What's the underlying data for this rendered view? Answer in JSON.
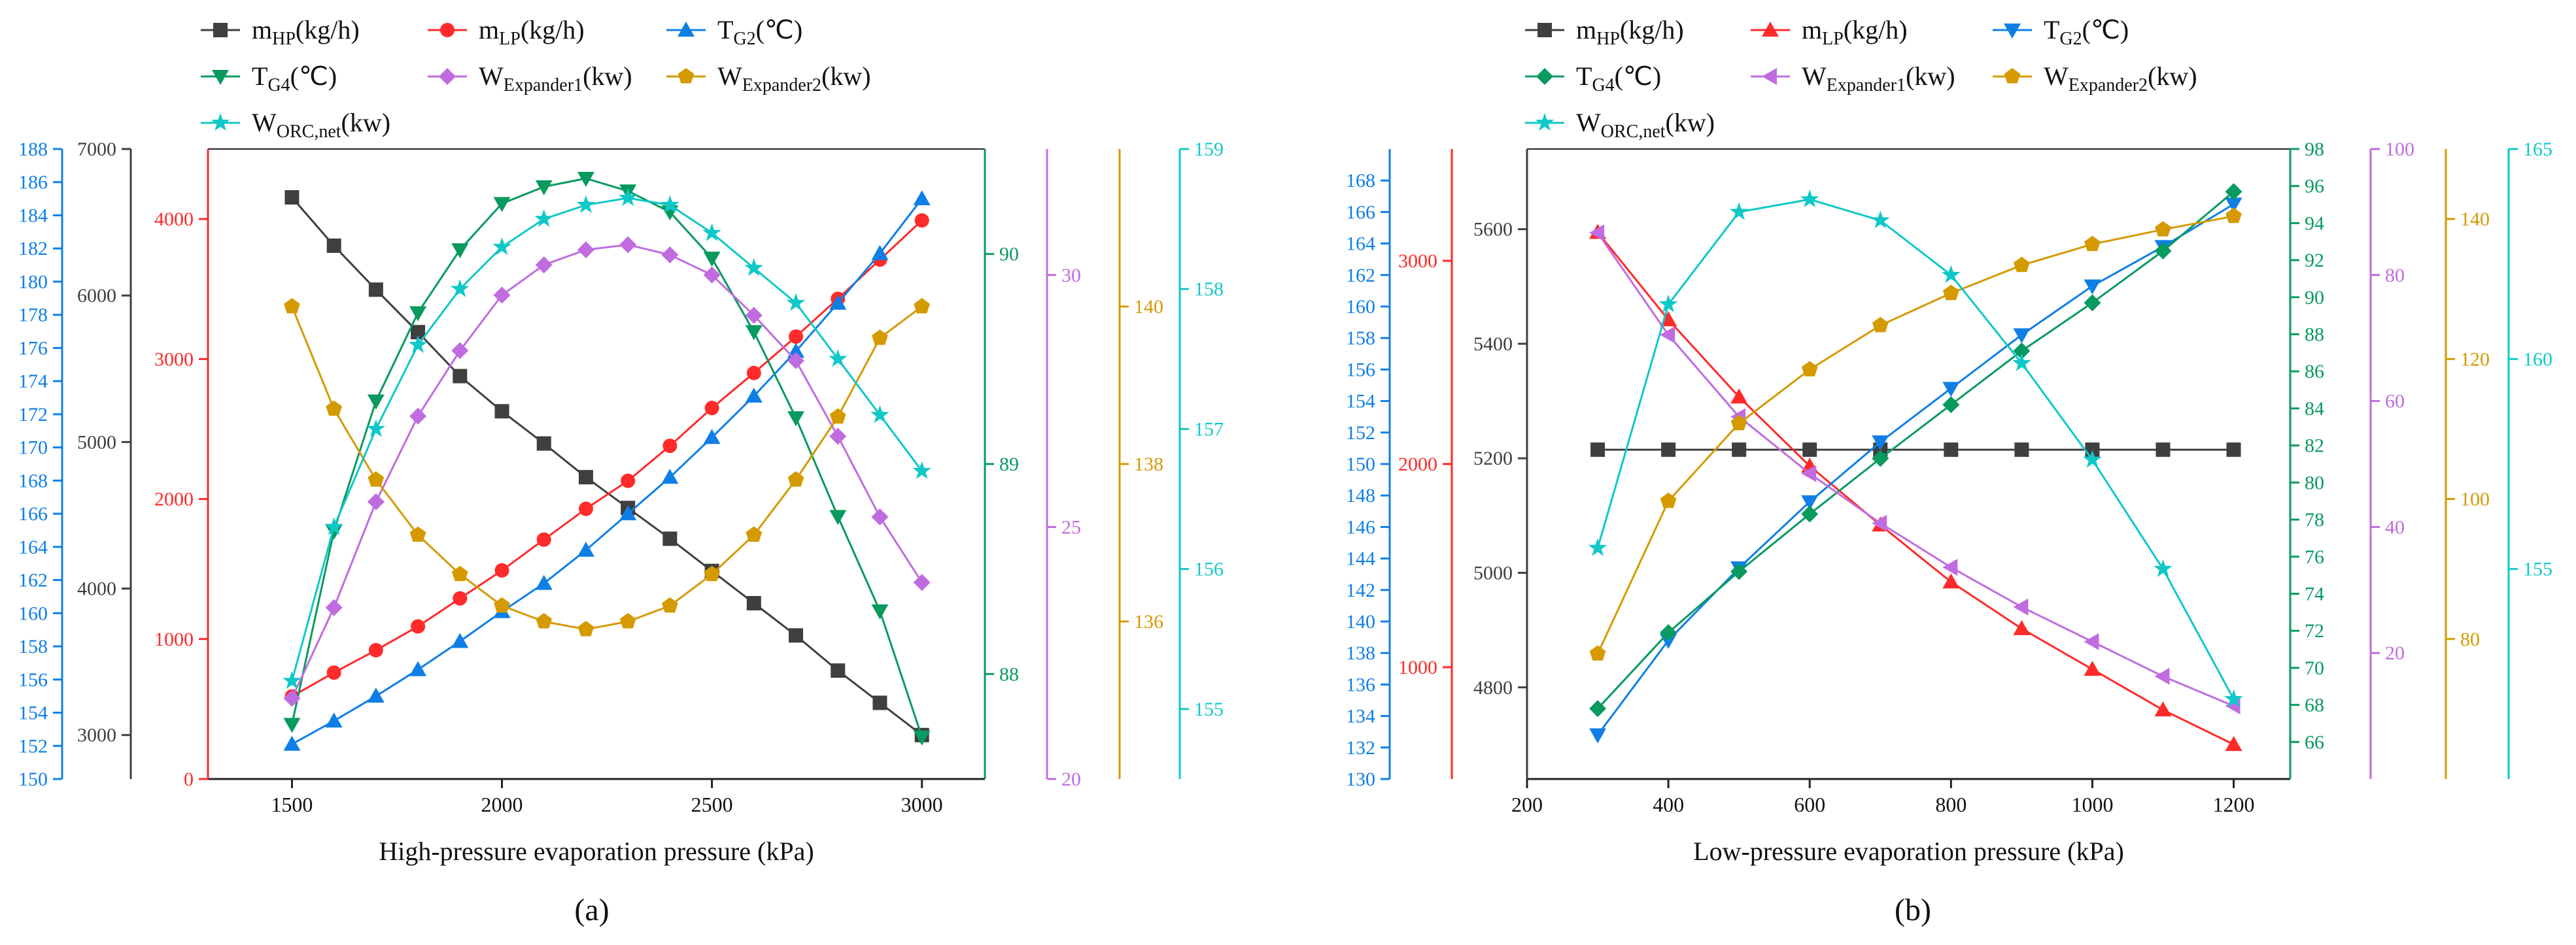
{
  "chart_data": [
    {
      "type": "line",
      "panel_label": "(a)",
      "xlabel": "High-pressure evaporation pressure (kPa)",
      "x": [
        1500,
        1600,
        1700,
        1800,
        1900,
        2000,
        2100,
        2200,
        2300,
        2400,
        2500,
        2600,
        2700,
        2800,
        2900,
        3000
      ],
      "xlim": [
        1300,
        3150
      ],
      "xticks": [
        1500,
        2000,
        2500,
        3000
      ],
      "grid": false,
      "legend_position": "top",
      "axes": [
        {
          "name": "m_HP",
          "color": "#3f3f3f",
          "range": [
            2700,
            7000
          ],
          "ticks": [
            3000,
            4000,
            5000,
            6000,
            7000
          ]
        },
        {
          "name": "m_LP",
          "color": "#ff2a2a",
          "range": [
            0,
            4500
          ],
          "ticks": [
            0,
            1000,
            2000,
            3000,
            4000
          ]
        },
        {
          "name": "T_G2",
          "color": "#0f7fe6",
          "range": [
            150,
            188
          ],
          "ticks": [
            150,
            152,
            154,
            156,
            158,
            160,
            162,
            164,
            166,
            168,
            170,
            172,
            174,
            176,
            178,
            180,
            182,
            184,
            186,
            188
          ]
        },
        {
          "name": "T_G4",
          "color": "#089a5e",
          "range": [
            87.5,
            90.5
          ],
          "ticks": [
            88,
            89,
            90
          ]
        },
        {
          "name": "W_Expander1",
          "color": "#c06ce0",
          "range": [
            20,
            32.5
          ],
          "ticks": [
            20,
            25,
            30
          ]
        },
        {
          "name": "W_Expander2",
          "color": "#d49a00",
          "range": [
            134,
            142
          ],
          "ticks": [
            136,
            138,
            140
          ]
        },
        {
          "name": "W_ORC_net",
          "color": "#10c8c8",
          "range": [
            154.5,
            159
          ],
          "ticks": [
            155,
            156,
            157,
            158,
            159
          ]
        }
      ],
      "legend": [
        {
          "label": "m",
          "sub": "HP",
          "unit": "(kg/h)"
        },
        {
          "label": "m",
          "sub": "LP",
          "unit": "(kg/h)"
        },
        {
          "label": "T",
          "sub": "G2",
          "unit": "(℃)"
        },
        {
          "label": "T",
          "sub": "G4",
          "unit": "(℃)"
        },
        {
          "label": "W",
          "sub": "Expander1",
          "unit": "(kw)"
        },
        {
          "label": "W",
          "sub": "Expander2",
          "unit": "(kw)"
        },
        {
          "label": "W",
          "sub": "ORC,net",
          "unit": "(kw)"
        }
      ],
      "series": [
        {
          "name": "m_HP(kg/h)",
          "axis": 0,
          "marker": "square",
          "values": [
            6670,
            6340,
            6040,
            5750,
            5450,
            5210,
            4990,
            4760,
            4550,
            4340,
            4120,
            3900,
            3680,
            3440,
            3220,
            3000
          ]
        },
        {
          "name": "m_LP(kg/h)",
          "axis": 1,
          "marker": "circle",
          "values": [
            590,
            760,
            920,
            1090,
            1290,
            1490,
            1710,
            1930,
            2130,
            2380,
            2650,
            2900,
            3160,
            3430,
            3710,
            3990
          ]
        },
        {
          "name": "T_G2(℃)",
          "axis": 2,
          "marker": "triangle-up",
          "values": [
            152.1,
            153.5,
            155.0,
            156.6,
            158.3,
            160.1,
            161.8,
            163.8,
            166.0,
            168.2,
            170.6,
            173.1,
            175.8,
            178.7,
            181.7,
            185.0
          ]
        },
        {
          "name": "T_G4(℃)",
          "axis": 3,
          "marker": "triangle-down",
          "values": [
            87.76,
            88.68,
            89.3,
            89.72,
            90.02,
            90.24,
            90.32,
            90.36,
            90.3,
            90.2,
            89.98,
            89.63,
            89.22,
            88.75,
            88.3,
            87.7
          ]
        },
        {
          "name": "W_Expander1(kw)",
          "axis": 4,
          "marker": "diamond",
          "values": [
            21.6,
            23.4,
            25.5,
            27.2,
            28.5,
            29.6,
            30.2,
            30.5,
            30.6,
            30.4,
            30.0,
            29.2,
            28.3,
            26.8,
            25.2,
            23.9
          ]
        },
        {
          "name": "W_Expander2(kw)",
          "axis": 5,
          "marker": "pentagon",
          "values": [
            140.0,
            138.7,
            137.8,
            137.1,
            136.6,
            136.2,
            136.0,
            135.9,
            136.0,
            136.2,
            136.6,
            137.1,
            137.8,
            138.6,
            139.6,
            140.0
          ]
        },
        {
          "name": "W_ORC,net(kw)",
          "axis": 6,
          "marker": "star",
          "values": [
            155.2,
            156.3,
            157.0,
            157.6,
            158.0,
            158.3,
            158.5,
            158.6,
            158.65,
            158.6,
            158.4,
            158.15,
            157.9,
            157.5,
            157.1,
            156.7
          ]
        }
      ]
    },
    {
      "type": "line",
      "panel_label": "(b)",
      "xlabel": "Low-pressure evaporation pressure (kPa)",
      "x": [
        300,
        400,
        500,
        600,
        700,
        800,
        900,
        1000,
        1100,
        1200
      ],
      "xlim": [
        200,
        1280
      ],
      "xticks": [
        200,
        400,
        600,
        800,
        1000,
        1200
      ],
      "grid": false,
      "legend_position": "top",
      "axes": [
        {
          "name": "T_G2",
          "color": "#0f7fe6",
          "range": [
            130,
            170
          ],
          "ticks": [
            130,
            132,
            134,
            136,
            138,
            140,
            142,
            144,
            146,
            148,
            150,
            152,
            154,
            156,
            158,
            160,
            162,
            164,
            166,
            168
          ]
        },
        {
          "name": "m_LP",
          "color": "#ff2a2a",
          "range": [
            450,
            3550
          ],
          "ticks": [
            1000,
            2000,
            3000
          ]
        },
        {
          "name": "m_HP",
          "color": "#3f3f3f",
          "range": [
            4640,
            5740
          ],
          "ticks": [
            4800,
            5000,
            5200,
            5400,
            5600
          ]
        },
        {
          "name": "T_G4",
          "color": "#089a5e",
          "range": [
            64,
            98
          ],
          "ticks": [
            66,
            68,
            70,
            72,
            74,
            76,
            78,
            80,
            82,
            84,
            86,
            88,
            90,
            92,
            94,
            96,
            98
          ]
        },
        {
          "name": "W_Expander1",
          "color": "#c06ce0",
          "range": [
            0,
            100
          ],
          "ticks": [
            20,
            40,
            60,
            80,
            100
          ]
        },
        {
          "name": "W_Expander2",
          "color": "#d49a00",
          "range": [
            60,
            150
          ],
          "ticks": [
            80,
            100,
            120,
            140
          ]
        },
        {
          "name": "W_ORC_net",
          "color": "#10c8c8",
          "range": [
            150,
            165
          ],
          "ticks": [
            155,
            160,
            165
          ]
        }
      ],
      "legend": [
        {
          "label": "m",
          "sub": "HP",
          "unit": "(kg/h)"
        },
        {
          "label": "m",
          "sub": "LP",
          "unit": "(kg/h)"
        },
        {
          "label": "T",
          "sub": "G2",
          "unit": "(℃)"
        },
        {
          "label": "T",
          "sub": "G4",
          "unit": "(℃)"
        },
        {
          "label": "W",
          "sub": "Expander1",
          "unit": "(kw)"
        },
        {
          "label": "W",
          "sub": "Expander2",
          "unit": "(kw)"
        },
        {
          "label": "W",
          "sub": "ORC,net",
          "unit": "(kw)"
        }
      ],
      "series": [
        {
          "name": "m_HP(kg/h)",
          "axis": 2,
          "marker": "square",
          "values": [
            5215,
            5215,
            5215,
            5215,
            5215,
            5215,
            5215,
            5215,
            5215,
            5215
          ]
        },
        {
          "name": "m_LP(kg/h)",
          "axis": 1,
          "marker": "triangle-up",
          "values": [
            3140,
            2710,
            2330,
            1990,
            1700,
            1420,
            1190,
            990,
            790,
            620
          ]
        },
        {
          "name": "T_G2(℃)",
          "axis": 0,
          "marker": "triangle-down",
          "values": [
            132.8,
            138.8,
            143.4,
            147.6,
            151.4,
            154.8,
            158.2,
            161.3,
            163.8,
            166.5
          ]
        },
        {
          "name": "T_G4(℃)",
          "axis": 3,
          "marker": "diamond",
          "values": [
            67.8,
            71.9,
            75.2,
            78.3,
            81.3,
            84.2,
            87.1,
            89.7,
            92.5,
            95.7
          ]
        },
        {
          "name": "W_Expander1(kw)",
          "axis": 4,
          "marker": "triangle-left",
          "values": [
            86.7,
            70.5,
            57.5,
            48.5,
            40.6,
            33.6,
            27.3,
            21.8,
            16.3,
            11.6
          ]
        },
        {
          "name": "W_Expander2(kw)",
          "axis": 5,
          "marker": "pentagon",
          "values": [
            77.9,
            99.7,
            110.8,
            118.5,
            124.8,
            129.4,
            133.4,
            136.4,
            138.5,
            140.4
          ]
        },
        {
          "name": "W_ORC,net(kw)",
          "axis": 6,
          "marker": "star",
          "values": [
            155.5,
            161.3,
            163.5,
            163.8,
            163.3,
            162.0,
            159.9,
            157.6,
            155.0,
            151.9
          ]
        }
      ]
    }
  ]
}
